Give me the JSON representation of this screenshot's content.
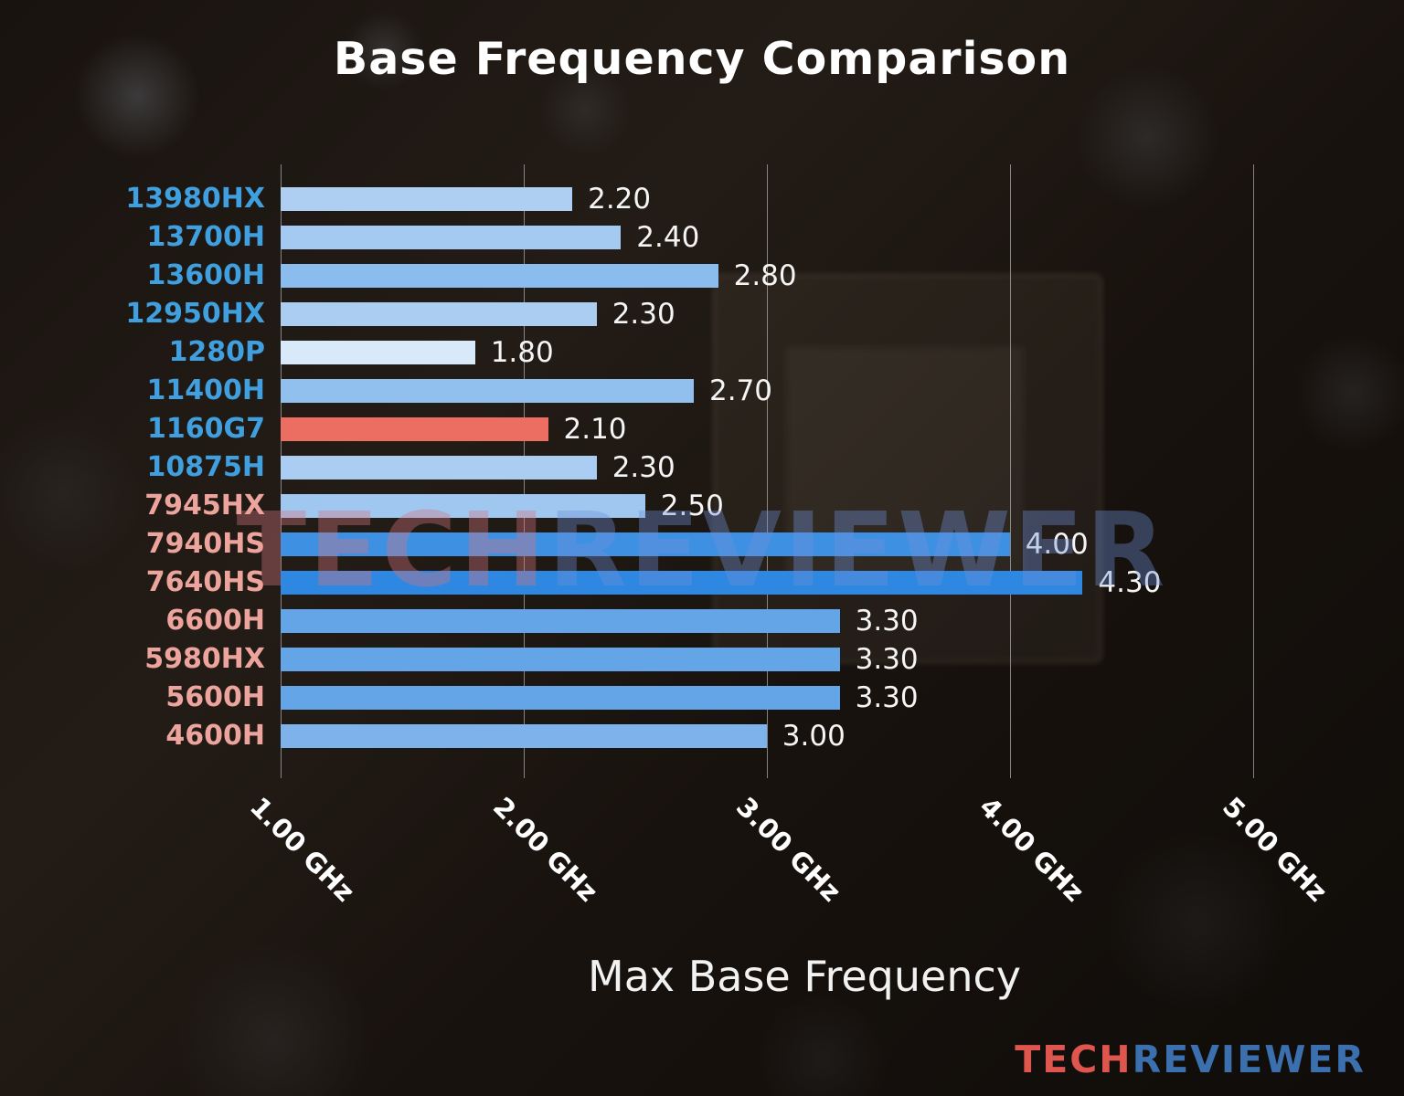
{
  "watermark": {
    "part1": "TECH",
    "part2": "REVIEWER"
  },
  "logo": {
    "part1": "TECH",
    "part2": "REVIEWER"
  },
  "chart_data": {
    "type": "bar",
    "orientation": "horizontal",
    "title": "Base Frequency Comparison",
    "xlabel": "Max Base Frequency",
    "ylabel": "",
    "unit": "GHz",
    "xlim": [
      1.0,
      5.31
    ],
    "grid": true,
    "legend": false,
    "xticks": [
      {
        "value": 1.0,
        "label": "1.00 GHz"
      },
      {
        "value": 2.0,
        "label": "2.00 GHz"
      },
      {
        "value": 3.0,
        "label": "3.00 GHz"
      },
      {
        "value": 4.0,
        "label": "4.00 GHz"
      },
      {
        "value": 5.0,
        "label": "5.00 GHz"
      }
    ],
    "bars": [
      {
        "label": "13980HX",
        "value": 2.2,
        "display": "2.20",
        "bar_color": "#aecff2",
        "label_color": "#3f9fdf"
      },
      {
        "label": "13700H",
        "value": 2.4,
        "display": "2.40",
        "bar_color": "#a4caf1",
        "label_color": "#3f9fdf"
      },
      {
        "label": "13600H",
        "value": 2.8,
        "display": "2.80",
        "bar_color": "#8bbcee",
        "label_color": "#3f9fdf"
      },
      {
        "label": "12950HX",
        "value": 2.3,
        "display": "2.30",
        "bar_color": "#aacdf1",
        "label_color": "#3f9fdf"
      },
      {
        "label": "1280P",
        "value": 1.8,
        "display": "1.80",
        "bar_color": "#d8e9f9",
        "label_color": "#3f9fdf"
      },
      {
        "label": "11400H",
        "value": 2.7,
        "display": "2.70",
        "bar_color": "#91c0ef",
        "label_color": "#3f9fdf"
      },
      {
        "label": "1160G7",
        "value": 2.1,
        "display": "2.10",
        "bar_color": "#ec6e62",
        "label_color": "#3f9fdf"
      },
      {
        "label": "10875H",
        "value": 2.3,
        "display": "2.30",
        "bar_color": "#aacdf1",
        "label_color": "#3f9fdf"
      },
      {
        "label": "7945HX",
        "value": 2.5,
        "display": "2.50",
        "bar_color": "#9fc7f0",
        "label_color": "#eca49c"
      },
      {
        "label": "7940HS",
        "value": 4.0,
        "display": "4.00",
        "bar_color": "#3e90e3",
        "label_color": "#eca49c"
      },
      {
        "label": "7640HS",
        "value": 4.3,
        "display": "4.30",
        "bar_color": "#2e87e1",
        "label_color": "#eca49c"
      },
      {
        "label": "6600H",
        "value": 3.3,
        "display": "3.30",
        "bar_color": "#63a5e7",
        "label_color": "#eca49c"
      },
      {
        "label": "5980HX",
        "value": 3.3,
        "display": "3.30",
        "bar_color": "#63a5e7",
        "label_color": "#eca49c"
      },
      {
        "label": "5600H",
        "value": 3.3,
        "display": "3.30",
        "bar_color": "#63a5e7",
        "label_color": "#eca49c"
      },
      {
        "label": "4600H",
        "value": 3.0,
        "display": "3.00",
        "bar_color": "#7db3ea",
        "label_color": "#eca49c"
      }
    ]
  }
}
